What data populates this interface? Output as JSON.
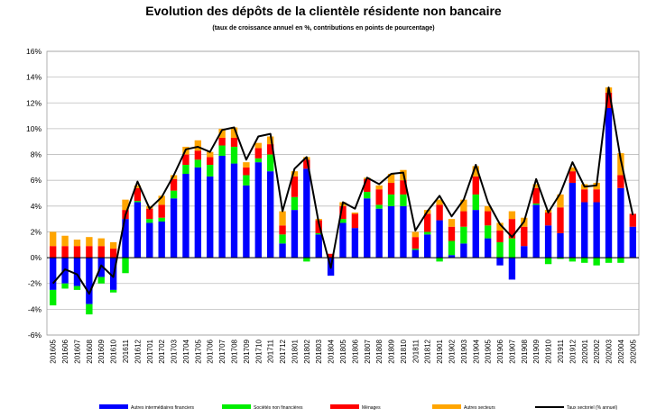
{
  "chart_data": {
    "type": "bar",
    "title": "Evolution des dépôts de la clientèle résidente non bancaire",
    "subtitle": "(taux de croissance annuel en %, contributions en points de pourcentage)",
    "ylim": [
      -6,
      16
    ],
    "ytick_step": 2,
    "ytick_suffix": "%",
    "grid": true,
    "legend_position": "bottom",
    "categories": [
      "201605",
      "201606",
      "201607",
      "201608",
      "201609",
      "201610",
      "201611",
      "201612",
      "201701",
      "201702",
      "201703",
      "201704",
      "201705",
      "201706",
      "201707",
      "201708",
      "201709",
      "201710",
      "201711",
      "201712",
      "201801",
      "201802",
      "201803",
      "201804",
      "201805",
      "201806",
      "201807",
      "201808",
      "201809",
      "201810",
      "201811",
      "201812",
      "201901",
      "201902",
      "201903",
      "201904",
      "201905",
      "201906",
      "201907",
      "201908",
      "201909",
      "201910",
      "201911",
      "201912",
      "202001",
      "202002",
      "202003",
      "202004",
      "202005"
    ],
    "xtick_labels": [
      "201605",
      "201606",
      "201607",
      "201608",
      "201609",
      "201610",
      "201611",
      "201612",
      "201701",
      "201702",
      "201703",
      "201704",
      "201705",
      "201706",
      "201707",
      "201708",
      "201709",
      "201710",
      "201711",
      "201712",
      "201801",
      "201802",
      "201803",
      "201804",
      "201805",
      "201806",
      "201807",
      "201808",
      "201809",
      "201810",
      "201811",
      "201812",
      "201901",
      "201902",
      "201903",
      "201904",
      "201905",
      "201906",
      "201907",
      "201908",
      "201909",
      "201910",
      "201911",
      "201912",
      "202001",
      "202002",
      "202003",
      "202004",
      "202005"
    ],
    "series": [
      {
        "name": "Autres intermédiaires financiers",
        "color": "#0000ff",
        "kind": "bar",
        "values": [
          -2.5,
          -2.0,
          -2.2,
          -3.6,
          -1.5,
          -2.5,
          3.0,
          4.3,
          2.7,
          2.8,
          4.6,
          6.5,
          7.0,
          6.3,
          7.9,
          7.3,
          5.6,
          7.4,
          6.7,
          1.1,
          3.7,
          6.9,
          1.8,
          -1.4,
          2.7,
          2.3,
          4.6,
          3.8,
          4.0,
          4.0,
          0.6,
          1.8,
          2.9,
          0.2,
          1.1,
          3.7,
          1.5,
          -0.6,
          -1.7,
          0.9,
          4.1,
          2.5,
          1.9,
          5.8,
          4.3,
          4.3,
          11.6,
          5.4,
          2.4
        ]
      },
      {
        "name": "Sociétés non financières",
        "color": "#00ee00",
        "kind": "bar",
        "values": [
          -1.2,
          -0.4,
          -0.3,
          -0.8,
          -0.5,
          -0.2,
          -1.2,
          0.1,
          0.3,
          0.3,
          0.6,
          0.7,
          0.6,
          0.9,
          0.8,
          1.3,
          0.8,
          0.3,
          1.3,
          0.7,
          1.0,
          -0.3,
          0.1,
          0.0,
          0.3,
          0.0,
          0.5,
          0.3,
          0.9,
          0.9,
          0.1,
          0.2,
          -0.3,
          1.1,
          1.3,
          1.2,
          1.0,
          1.2,
          1.5,
          0.0,
          0.1,
          -0.5,
          -0.1,
          -0.3,
          -0.4,
          -0.6,
          -0.4,
          -0.4,
          0.0
        ]
      },
      {
        "name": "Ménages",
        "color": "#ff0000",
        "kind": "bar",
        "values": [
          0.9,
          0.9,
          0.9,
          0.9,
          0.9,
          0.7,
          0.7,
          1.0,
          0.8,
          1.0,
          0.9,
          0.8,
          0.7,
          0.6,
          0.6,
          0.7,
          0.6,
          0.8,
          0.8,
          0.7,
          1.6,
          0.7,
          1.0,
          0.3,
          1.0,
          1.1,
          1.0,
          1.2,
          0.9,
          1.1,
          0.9,
          1.4,
          1.2,
          1.1,
          1.2,
          1.4,
          1.1,
          0.9,
          1.5,
          1.5,
          1.2,
          1.0,
          2.0,
          0.9,
          1.0,
          1.0,
          1.2,
          1.0,
          1.0
        ]
      },
      {
        "name": "Autres secteurs",
        "color": "#ffa500",
        "kind": "bar",
        "values": [
          1.1,
          0.8,
          0.5,
          0.7,
          0.6,
          0.5,
          0.8,
          0.2,
          0.2,
          0.7,
          0.3,
          0.6,
          0.8,
          0.4,
          0.7,
          0.8,
          0.4,
          0.4,
          0.6,
          1.1,
          0.4,
          0.2,
          0.1,
          0.0,
          0.3,
          0.1,
          0.1,
          0.3,
          0.7,
          0.8,
          0.4,
          0.3,
          0.4,
          0.6,
          0.9,
          0.8,
          0.4,
          0.6,
          0.6,
          0.7,
          0.3,
          0.2,
          1.0,
          0.3,
          0.4,
          0.5,
          0.4,
          1.7,
          0.0
        ]
      },
      {
        "name": "Taux sectoriel (% annuel)",
        "color": "#000000",
        "kind": "line",
        "values": [
          -2.0,
          -0.9,
          -1.3,
          -2.8,
          -0.6,
          -1.5,
          3.3,
          5.9,
          3.8,
          4.7,
          6.4,
          8.4,
          8.6,
          8.2,
          9.9,
          10.1,
          7.6,
          9.4,
          9.6,
          3.6,
          6.9,
          7.8,
          2.7,
          -0.8,
          4.3,
          3.8,
          6.2,
          5.7,
          6.5,
          6.6,
          2.1,
          3.6,
          4.8,
          3.2,
          4.5,
          7.2,
          4.3,
          2.6,
          1.6,
          2.8,
          6.1,
          3.5,
          5.0,
          7.4,
          5.5,
          5.6,
          13.2,
          7.6,
          3.3
        ]
      }
    ]
  }
}
